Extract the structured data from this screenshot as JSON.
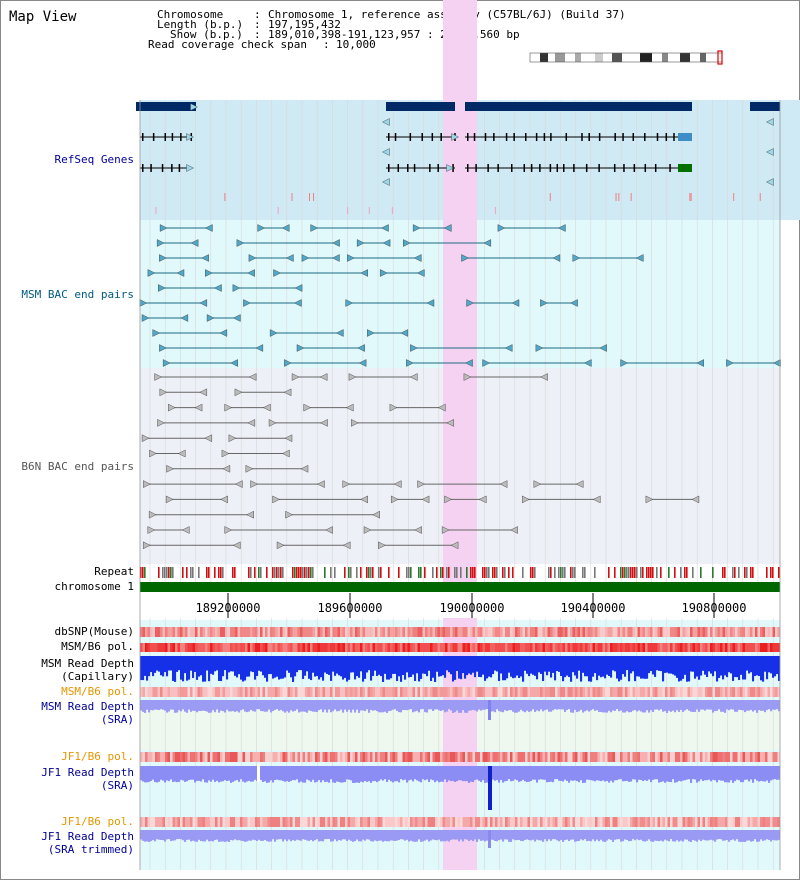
{
  "title": "Map View",
  "header": {
    "chromosome_label": "Chromosome",
    "chromosome_value": "Chromosome 1, reference assembly (C57BL/6J) (Build 37)",
    "length_label": "Length (b.p.)",
    "length_value": "197,195,432",
    "show_label": "Show (b.p.)",
    "show_value": "189,010,398-191,123,957 : 2,113,560 bp",
    "span_label": "Read coverage check span",
    "span_value": "10,000"
  },
  "tracks": {
    "refseq": "RefSeq Genes",
    "msm_bac": "MSM BAC end pairs",
    "b6n_bac": "B6N BAC end pairs",
    "repeat": "Repeat",
    "chromosome": "chromosome 1",
    "dbsnp": "dbSNP(Mouse)",
    "msm_b6_pol_1": "MSM/B6 pol.",
    "msm_read_depth_cap_1": "MSM Read Depth",
    "msm_read_depth_cap_2": "(Capillary)",
    "msm_b6_pol_2": "MSM/B6 pol.",
    "msm_read_depth_sra_1": "MSM Read Depth",
    "msm_read_depth_sra_2": "(SRA)",
    "jf1_b6_pol_1": "JF1/B6 pol.",
    "jf1_read_depth_sra_1": "JF1 Read Depth",
    "jf1_read_depth_sra_2": "(SRA)",
    "jf1_b6_pol_2": "JF1/B6 pol.",
    "jf1_read_depth_trim_1": "JF1 Read Depth",
    "jf1_read_depth_trim_2": "(SRA trimmed)"
  },
  "axis_ticks": [
    "189200000",
    "189600000",
    "190000000",
    "190400000",
    "190800000"
  ],
  "colors": {
    "refseq_bg": "#cfe9f5",
    "msm_bac_bg": "#e2f9fb",
    "b6n_bac_bg": "#eef0f8",
    "highlight": "#f6d2f2",
    "gene_navy": "#002a66",
    "msm_bac_line": "#1a6a80",
    "b6n_bac_line": "#666666",
    "chromosome_bar": "#006600",
    "depth_blue": "#1530e6",
    "depth_lavender": "#8c8cf5",
    "label_navy": "#000099",
    "label_msm": "#005a80",
    "label_orange": "#e69500"
  },
  "icons": {
    "gene_direction_arrow": "triangle-arrow-icon",
    "bac_end_marker": "triangle-marker-icon"
  }
}
